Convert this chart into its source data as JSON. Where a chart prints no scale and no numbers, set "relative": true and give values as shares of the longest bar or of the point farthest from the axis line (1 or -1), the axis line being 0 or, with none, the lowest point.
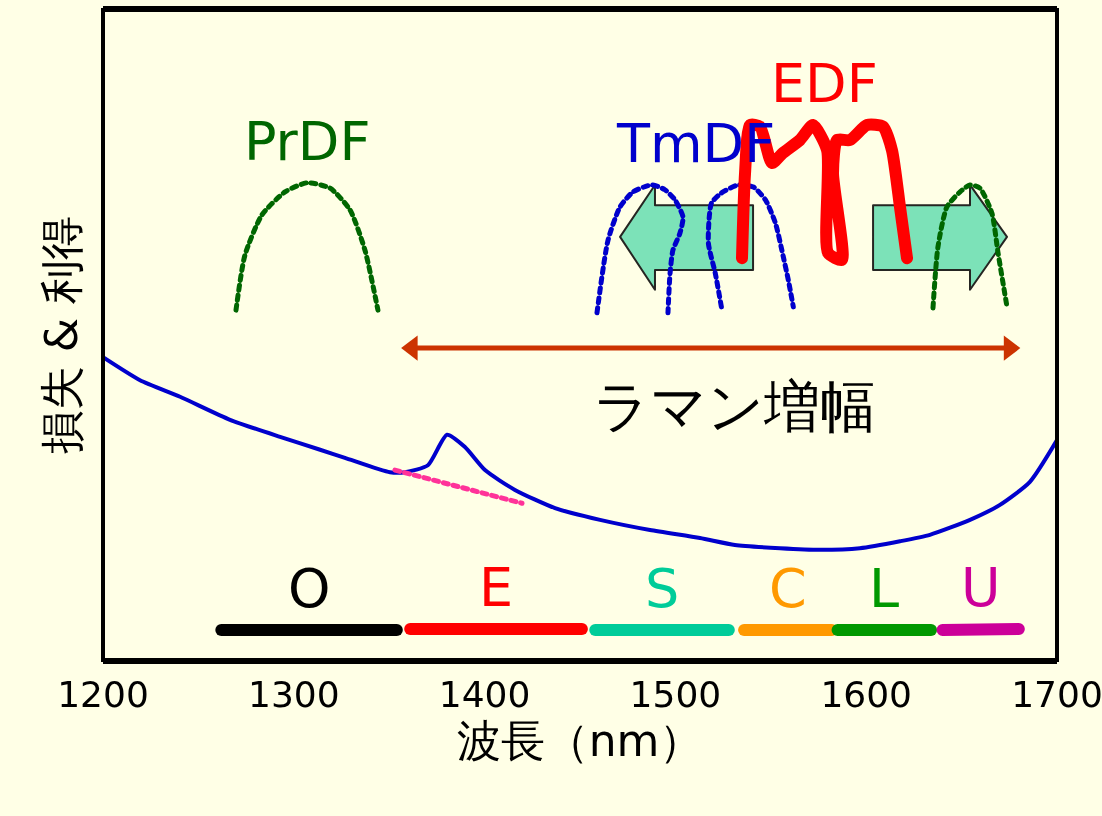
{
  "chart_data": {
    "type": "line",
    "relative": true,
    "xlabel": "波長（nm）",
    "ylabel": "損失 & 利得",
    "xlim": [
      1200,
      1700
    ],
    "xticks": [
      1200,
      1300,
      1400,
      1500,
      1600,
      1700
    ],
    "tick_labels": "x",
    "grid": false,
    "legend": false,
    "annotations": [
      "ラマン増幅"
    ],
    "series": [
      {
        "type": "area",
        "color": "#66ddb0",
        "x": [
          1540.7,
          1489.3,
          1489.3,
          1471.0,
          1489.3,
          1489.3,
          1540.7,
          1540.7
        ],
        "values": [
          0.729,
          0.729,
          0.692,
          0.791,
          0.888,
          0.85,
          0.85,
          0.729
        ]
      },
      {
        "type": "area",
        "color": "#66ddb0",
        "x": [
          1603.6,
          1654.4,
          1654.4,
          1673.8,
          1654.4,
          1654.4,
          1603.6,
          1603.6
        ],
        "values": [
          0.729,
          0.729,
          0.692,
          0.791,
          0.888,
          0.85,
          0.85,
          0.729
        ]
      },
      {
        "color": "#0000cc",
        "x": [
          1200,
          1219.4,
          1240.4,
          1266.6,
          1292.8,
          1313.8,
          1326.8,
          1350.4,
          1358.3,
          1370.3,
          1380.3,
          1389.7,
          1400.2,
          1415.9,
          1436.9,
          1460.5,
          1486.7,
          1512.9,
          1531.2,
          1554.8,
          1575.8,
          1596.7,
          1617.7,
          1633.4,
          1654.4,
          1670.1,
          1685.8,
          1700
        ],
        "values": [
          0.566,
          0.523,
          0.492,
          0.449,
          0.417,
          0.393,
          0.378,
          0.351,
          0.351,
          0.364,
          0.421,
          0.398,
          0.355,
          0.318,
          0.284,
          0.262,
          0.243,
          0.228,
          0.215,
          0.209,
          0.206,
          0.209,
          0.222,
          0.234,
          0.262,
          0.29,
          0.333,
          0.411
        ]
      },
      {
        "color": "#ff3399",
        "line_style": "dotted",
        "x": [
          1353,
          1419.6
        ],
        "values": [
          0.355,
          0.293
        ]
      },
      {
        "name": "PrDF",
        "color": "#006600",
        "line_style": "dotted",
        "x": [
          1269.7,
          1274.4,
          1283.3,
          1295.4,
          1306.9,
          1319,
          1329.5,
          1337.3,
          1344.1
        ],
        "values": [
          0.654,
          0.757,
          0.832,
          0.875,
          0.892,
          0.882,
          0.841,
          0.766,
          0.654
        ]
      },
      {
        "name": "TmDF",
        "color": "#0000cc",
        "line_style": "dotted",
        "x": [
          1458.9,
          1464.7,
          1471.0,
          1477.8,
          1487.7,
          1494.5,
          1499.8,
          1504.0,
          1502.4,
          1498.7,
          1497.2,
          1496.1,
          1510,
          1524.1,
          1520.9,
          1517.3,
          1518.9,
          1524.1,
          1533.0,
          1540.9,
          1547.2,
          1552.4,
          1556.6,
          1559.2,
          1561.8
        ],
        "values": [
          0.649,
          0.785,
          0.847,
          0.875,
          0.888,
          0.879,
          0.86,
          0.828,
          0.798,
          0.766,
          0.723,
          0.649,
          null,
          0.66,
          0.723,
          0.779,
          0.854,
          0.873,
          0.888,
          0.884,
          0.86,
          0.817,
          0.753,
          0.71,
          0.66
        ]
      },
      {
        "name": "EDF",
        "color": "#ff0000",
        "x": [
          1534.9,
          1536.5,
          1539.1,
          1544.3,
          1550.6,
          1556.4,
          1565.3,
          1572.1,
          1579.5,
          1580.0,
          1587.3,
          1582.6,
          1584.7,
          1591.5,
          1600.4,
          1608.8,
          1613.5,
          1617.7,
          1621.4
        ],
        "values": [
          0.751,
          0.91,
          1,
          0.997,
          0.929,
          0.948,
          0.972,
          1,
          0.953,
          0.761,
          0.748,
          0.91,
          0.972,
          0.972,
          1,
          0.997,
          0.953,
          0.847,
          0.751
        ]
      },
      {
        "color": "#006600",
        "line_style": "dotted",
        "x": [
          1635.0,
          1637.6,
          1642.3,
          1649.2,
          1654.4,
          1659.6,
          1665.9,
          1669.1,
          1673.8
        ],
        "values": [
          0.658,
          0.772,
          0.847,
          0.875,
          0.888,
          0.882,
          0.835,
          0.761,
          0.66
        ]
      },
      {
        "color": "#cc3300",
        "marker": "triangle",
        "x": [
          1362,
          1675
        ],
        "values": [
          0.583,
          0.583
        ]
      },
      {
        "name": "O",
        "color": "#000000",
        "x": [
          1262,
          1354
        ],
        "values": [
          0.056,
          0.056
        ]
      },
      {
        "name": "E",
        "color": "#ff0000",
        "x": [
          1361,
          1451
        ],
        "values": [
          0.058,
          0.058
        ]
      },
      {
        "name": "S",
        "color": "#00cc99",
        "x": [
          1458,
          1528
        ],
        "values": [
          0.056,
          0.056
        ]
      },
      {
        "name": "C",
        "color": "#ff9900",
        "x": [
          1536,
          1582
        ],
        "values": [
          0.056,
          0.056
        ]
      },
      {
        "name": "L",
        "color": "#009900",
        "x": [
          1585,
          1634
        ],
        "values": [
          0.056,
          0.056
        ]
      },
      {
        "name": "U",
        "color": "#cc0099",
        "x": [
          1640,
          1680
        ],
        "values": [
          0.056,
          0.058
        ]
      }
    ]
  }
}
